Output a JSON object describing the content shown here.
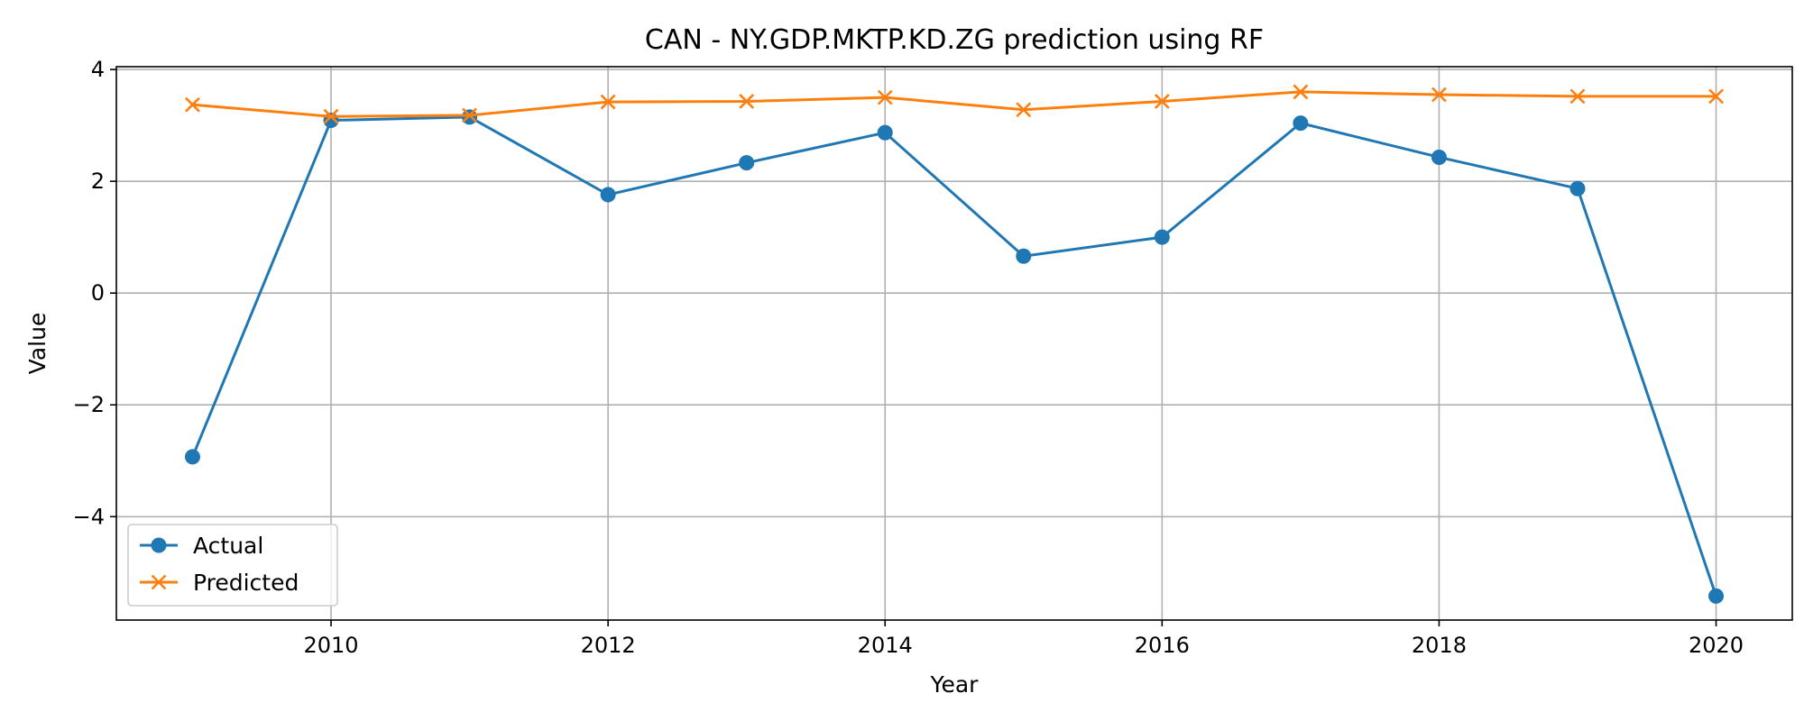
{
  "chart_data": {
    "type": "line",
    "title": "CAN - NY.GDP.MKTP.KD.ZG prediction using RF",
    "xlabel": "Year",
    "ylabel": "Value",
    "x": [
      2009,
      2010,
      2011,
      2012,
      2013,
      2014,
      2015,
      2016,
      2017,
      2018,
      2019,
      2020
    ],
    "xlim": [
      2008.45,
      2020.55
    ],
    "ylim": [
      -5.85,
      4.05
    ],
    "xticks": [
      2010,
      2012,
      2014,
      2016,
      2018,
      2020
    ],
    "xtick_labels": [
      "2010",
      "2012",
      "2014",
      "2016",
      "2018",
      "2020"
    ],
    "yticks": [
      -4,
      -2,
      0,
      2,
      4
    ],
    "ytick_labels": [
      "−4",
      "−2",
      "0",
      "2",
      "4"
    ],
    "grid": true,
    "legend_position": "lower-left",
    "series": [
      {
        "name": "Actual",
        "marker": "circle",
        "color": "#1f77b4",
        "values": [
          -2.93,
          3.09,
          3.15,
          1.76,
          2.33,
          2.87,
          0.66,
          1.0,
          3.04,
          2.43,
          1.87,
          -5.42
        ]
      },
      {
        "name": "Predicted",
        "marker": "x",
        "color": "#ff7f0e",
        "values": [
          3.37,
          3.16,
          3.18,
          3.42,
          3.43,
          3.5,
          3.28,
          3.43,
          3.6,
          3.55,
          3.52,
          3.52
        ]
      }
    ]
  }
}
